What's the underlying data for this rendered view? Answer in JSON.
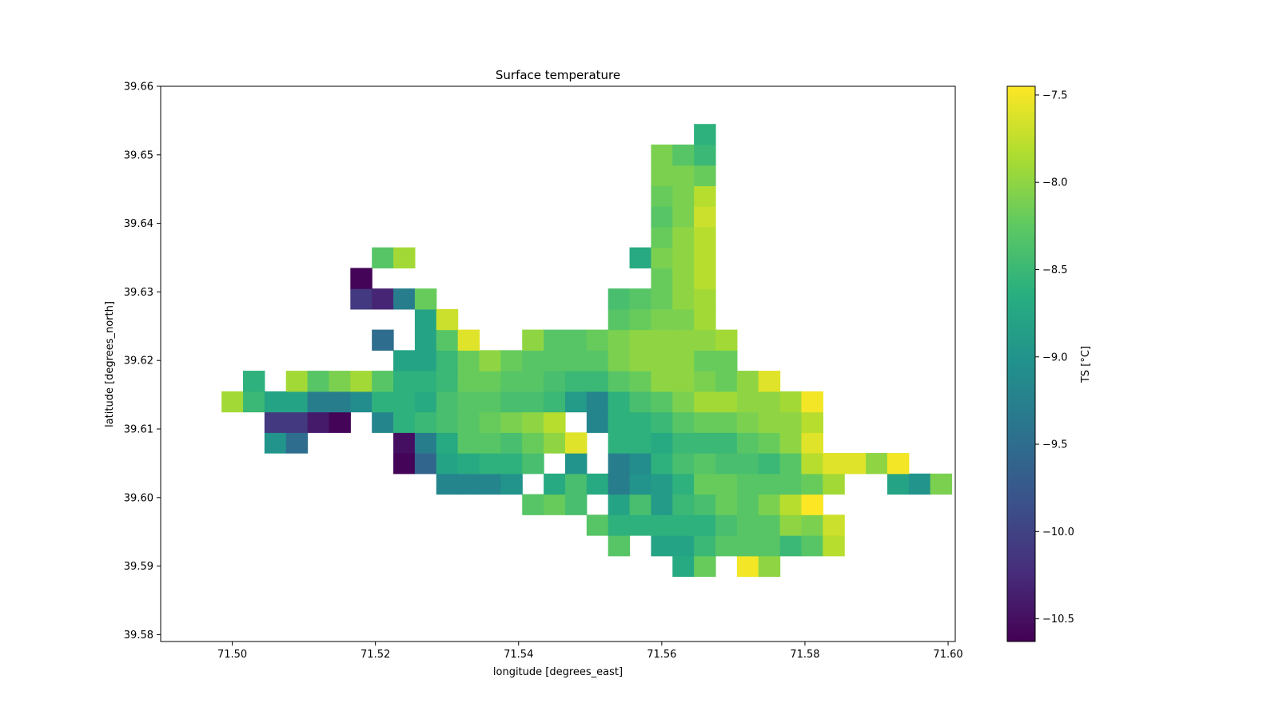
{
  "chart_data": {
    "type": "heatmap",
    "title": "Surface temperature",
    "xlabel": "longitude [degrees_east]",
    "ylabel": "latitude [degrees_north]",
    "xlim": [
      71.49,
      71.601
    ],
    "ylim": [
      39.579,
      39.66
    ],
    "x_ticks": [
      "71.50",
      "71.52",
      "71.54",
      "71.56",
      "71.58",
      "71.60"
    ],
    "x_tick_values": [
      71.5,
      71.52,
      71.54,
      71.56,
      71.58,
      71.6
    ],
    "y_ticks": [
      "39.58",
      "39.59",
      "39.60",
      "39.61",
      "39.62",
      "39.63",
      "39.64",
      "39.65",
      "39.66"
    ],
    "y_tick_values": [
      39.58,
      39.59,
      39.6,
      39.61,
      39.62,
      39.63,
      39.64,
      39.65,
      39.66
    ],
    "grid": false,
    "colormap": "viridis",
    "colorbar": {
      "label": "TS [°C]",
      "vmin": -10.63,
      "vmax": -7.45,
      "ticks": [
        "−7.5",
        "−8.0",
        "−8.5",
        "−9.0",
        "−9.5",
        "−10.0",
        "−10.5"
      ],
      "tick_values": [
        -7.5,
        -8.0,
        -8.5,
        -9.0,
        -9.5,
        -10.0,
        -10.5
      ]
    },
    "grid_spec": {
      "lon0": 71.5,
      "lat0": 39.59,
      "dlon": 0.003,
      "dlat": 0.003,
      "note": "cell centers: lon = lon0 + c*dlon, lat = lat0 + r*dlat (r=0 is the southernmost row); null = no data"
    },
    "values": [
      [
        null,
        null,
        null,
        null,
        null,
        null,
        null,
        null,
        null,
        null,
        null,
        null,
        null,
        null,
        null,
        null,
        null,
        null,
        null,
        null,
        null,
        -8.7,
        -8.2,
        null,
        -7.5,
        -8.0,
        null,
        null,
        null,
        null,
        null,
        null,
        null,
        null
      ],
      [
        null,
        null,
        null,
        null,
        null,
        null,
        null,
        null,
        null,
        null,
        null,
        null,
        null,
        null,
        null,
        null,
        null,
        null,
        -8.3,
        null,
        -8.8,
        -8.8,
        -8.5,
        -8.3,
        -8.3,
        -8.3,
        -8.5,
        -8.3,
        -7.8,
        null,
        null,
        null,
        null,
        null
      ],
      [
        null,
        null,
        null,
        null,
        null,
        null,
        null,
        null,
        null,
        null,
        null,
        null,
        null,
        null,
        null,
        null,
        null,
        -8.3,
        -8.6,
        -8.6,
        -8.6,
        -8.6,
        -8.6,
        -8.4,
        -8.3,
        -8.3,
        -8.0,
        -8.1,
        -7.7,
        null,
        null,
        null,
        null,
        null
      ],
      [
        null,
        null,
        null,
        null,
        null,
        null,
        null,
        null,
        null,
        null,
        null,
        null,
        null,
        null,
        -8.3,
        -8.2,
        -8.4,
        null,
        -8.8,
        -8.4,
        -8.9,
        -8.5,
        -8.4,
        -8.2,
        -8.3,
        -8.1,
        -7.8,
        -7.4,
        null,
        null,
        null,
        null,
        null,
        null
      ],
      [
        null,
        null,
        null,
        null,
        null,
        null,
        null,
        null,
        null,
        null,
        -9.2,
        -9.2,
        -9.2,
        -9.0,
        null,
        -8.7,
        -8.4,
        -8.7,
        -9.3,
        -9.0,
        -8.9,
        -8.6,
        -8.2,
        -8.2,
        -8.3,
        -8.3,
        -8.3,
        -8.2,
        -7.9,
        null,
        null,
        -8.8,
        -9.0,
        -8.1
      ],
      [
        null,
        null,
        null,
        null,
        null,
        null,
        null,
        null,
        -10.6,
        -9.6,
        -8.8,
        -8.7,
        -8.6,
        -8.6,
        -8.4,
        null,
        -9.0,
        null,
        -9.3,
        -9.1,
        -8.6,
        -8.4,
        -8.3,
        -8.4,
        -8.4,
        -8.5,
        -8.3,
        -7.8,
        -7.6,
        -7.6,
        -8.0,
        -7.5,
        null,
        null
      ],
      [
        null,
        null,
        -9.0,
        -9.5,
        null,
        null,
        null,
        null,
        -10.5,
        -9.3,
        -8.7,
        -8.3,
        -8.3,
        -8.4,
        -8.2,
        -8.0,
        -7.6,
        null,
        -8.6,
        -8.6,
        -8.7,
        -8.5,
        -8.5,
        -8.5,
        -8.3,
        -8.2,
        -8.0,
        -7.6,
        null,
        null,
        null,
        null,
        null,
        null
      ],
      [
        null,
        null,
        -10.1,
        -10.1,
        -10.4,
        -10.6,
        null,
        -9.2,
        -8.6,
        -8.5,
        -8.4,
        -8.3,
        -8.2,
        -8.1,
        -8.0,
        -7.8,
        null,
        -9.2,
        -8.6,
        -8.6,
        -8.5,
        -8.3,
        -8.2,
        -8.2,
        -8.1,
        -8.0,
        -8.0,
        -7.8,
        null,
        null,
        null,
        null,
        null,
        null
      ],
      [
        -7.9,
        -8.5,
        -8.8,
        -8.8,
        -9.3,
        -9.3,
        -9.1,
        -8.6,
        -8.6,
        -8.7,
        -8.4,
        -8.3,
        -8.3,
        -8.4,
        -8.4,
        -8.5,
        -8.9,
        -9.2,
        -8.6,
        -8.4,
        -8.3,
        -8.1,
        -7.9,
        -7.9,
        -8.0,
        -8.0,
        -7.9,
        -7.5,
        null,
        null,
        null,
        null,
        null,
        null
      ],
      [
        null,
        -8.6,
        null,
        -7.9,
        -8.3,
        -8.1,
        -7.9,
        -8.3,
        -8.6,
        -8.6,
        -8.5,
        -8.2,
        -8.2,
        -8.3,
        -8.3,
        -8.4,
        -8.5,
        -8.5,
        -8.3,
        -8.2,
        -8.0,
        -8.0,
        -8.1,
        -8.2,
        -8.0,
        -7.6,
        null,
        null,
        null,
        null,
        null,
        null,
        null,
        null
      ],
      [
        null,
        null,
        null,
        null,
        null,
        null,
        null,
        null,
        -8.8,
        -8.8,
        -8.5,
        -8.2,
        -8.0,
        -8.2,
        -8.3,
        -8.3,
        -8.3,
        -8.3,
        -8.1,
        -8.0,
        -8.0,
        -8.0,
        -8.2,
        -8.2,
        null,
        null,
        null,
        null,
        null,
        null,
        null,
        null,
        null,
        null
      ],
      [
        null,
        null,
        null,
        null,
        null,
        null,
        null,
        -9.5,
        null,
        -8.8,
        -8.3,
        -7.6,
        null,
        null,
        -8.0,
        -8.3,
        -8.3,
        -8.2,
        -8.1,
        -8.0,
        -8.0,
        -8.0,
        -8.0,
        -7.9,
        null,
        null,
        null,
        null,
        null,
        null,
        null,
        null,
        null,
        null
      ],
      [
        null,
        null,
        null,
        null,
        null,
        null,
        null,
        null,
        null,
        -8.8,
        -7.7,
        null,
        null,
        null,
        null,
        null,
        null,
        null,
        -8.3,
        -8.2,
        -8.1,
        -8.1,
        -7.9,
        null,
        null,
        null,
        null,
        null,
        null,
        null,
        null,
        null,
        null,
        null
      ],
      [
        null,
        null,
        null,
        null,
        null,
        null,
        -10.1,
        -10.3,
        -9.3,
        -8.2,
        null,
        null,
        null,
        null,
        null,
        null,
        null,
        null,
        -8.4,
        -8.3,
        -8.2,
        -8.0,
        -7.9,
        null,
        null,
        null,
        null,
        null,
        null,
        null,
        null,
        null,
        null,
        null
      ],
      [
        null,
        null,
        null,
        null,
        null,
        null,
        -10.6,
        null,
        null,
        null,
        null,
        null,
        null,
        null,
        null,
        null,
        null,
        null,
        null,
        null,
        -8.2,
        -8.0,
        -7.8,
        null,
        null,
        null,
        null,
        null,
        null,
        null,
        null,
        null,
        null,
        null
      ],
      [
        null,
        null,
        null,
        null,
        null,
        null,
        null,
        -8.3,
        -7.9,
        null,
        null,
        null,
        null,
        null,
        null,
        null,
        null,
        null,
        null,
        -8.7,
        -8.1,
        -8.0,
        -7.8,
        null,
        null,
        null,
        null,
        null,
        null,
        null,
        null,
        null,
        null,
        null
      ],
      [
        null,
        null,
        null,
        null,
        null,
        null,
        null,
        null,
        null,
        null,
        null,
        null,
        null,
        null,
        null,
        null,
        null,
        null,
        null,
        null,
        -8.2,
        -8.0,
        -7.8,
        null,
        null,
        null,
        null,
        null,
        null,
        null,
        null,
        null,
        null,
        null
      ],
      [
        null,
        null,
        null,
        null,
        null,
        null,
        null,
        null,
        null,
        null,
        null,
        null,
        null,
        null,
        null,
        null,
        null,
        null,
        null,
        null,
        -8.3,
        -8.1,
        -7.7,
        null,
        null,
        null,
        null,
        null,
        null,
        null,
        null,
        null,
        null,
        null
      ],
      [
        null,
        null,
        null,
        null,
        null,
        null,
        null,
        null,
        null,
        null,
        null,
        null,
        null,
        null,
        null,
        null,
        null,
        null,
        null,
        null,
        -8.2,
        -8.1,
        -7.8,
        null,
        null,
        null,
        null,
        null,
        null,
        null,
        null,
        null,
        null,
        null
      ],
      [
        null,
        null,
        null,
        null,
        null,
        null,
        null,
        null,
        null,
        null,
        null,
        null,
        null,
        null,
        null,
        null,
        null,
        null,
        null,
        null,
        -8.1,
        -8.1,
        -8.2,
        null,
        null,
        null,
        null,
        null,
        null,
        null,
        null,
        null,
        null,
        null
      ],
      [
        null,
        null,
        null,
        null,
        null,
        null,
        null,
        null,
        null,
        null,
        null,
        null,
        null,
        null,
        null,
        null,
        null,
        null,
        null,
        null,
        -8.1,
        -8.3,
        -8.5,
        null,
        null,
        null,
        null,
        null,
        null,
        null,
        null,
        null,
        null,
        null
      ],
      [
        null,
        null,
        null,
        null,
        null,
        null,
        null,
        null,
        null,
        null,
        null,
        null,
        null,
        null,
        null,
        null,
        null,
        null,
        null,
        null,
        null,
        null,
        -8.6,
        null,
        null,
        null,
        null,
        null,
        null,
        null,
        null,
        null,
        null,
        null
      ]
    ]
  }
}
